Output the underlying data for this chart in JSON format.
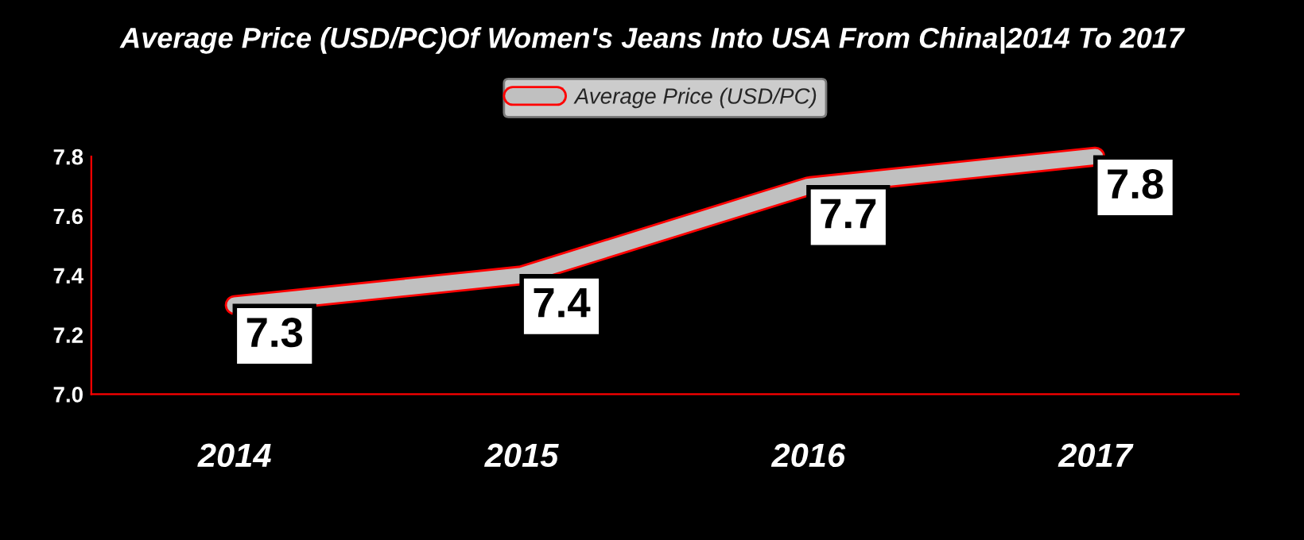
{
  "chart_data": {
    "type": "line",
    "title": "Average Price (USD/PC)Of Women's Jeans Into USA From China|2014 To 2017",
    "categories": [
      "2014",
      "2015",
      "2016",
      "2017"
    ],
    "series": [
      {
        "name": "Average Price (USD/PC)",
        "color": "#c0c0c0",
        "values": [
          7.3,
          7.4,
          7.7,
          7.8
        ]
      }
    ],
    "ylim": [
      7.0,
      7.8
    ],
    "yticks": [
      "7.0",
      "7.2",
      "7.4",
      "7.6",
      "7.8"
    ],
    "data_labels": true,
    "legend": "top",
    "grid": false,
    "marker": "none",
    "line_style": "solid"
  }
}
